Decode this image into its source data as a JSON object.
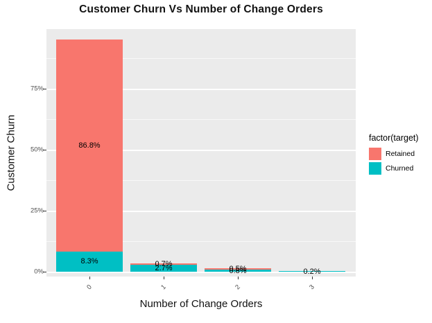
{
  "chart_data": {
    "type": "bar",
    "stacked": true,
    "title": "Customer Churn Vs Number of Change Orders",
    "xlabel": "Number of Change Orders",
    "ylabel": "Customer Churn",
    "categories": [
      "0",
      "1",
      "2",
      "3"
    ],
    "series": [
      {
        "name": "Retained",
        "color": "#F8766D",
        "values": [
          86.8,
          0.7,
          0.5,
          0.0
        ],
        "labels": [
          "86.8%",
          "0.7%",
          "0.5%",
          ""
        ]
      },
      {
        "name": "Churned",
        "color": "#00BFC4",
        "values": [
          8.3,
          2.7,
          0.8,
          0.2
        ],
        "labels": [
          "8.3%",
          "2.7%",
          "0.8%",
          "0.2%"
        ]
      }
    ],
    "stack_order_bottom_up": [
      "Churned",
      "Retained"
    ],
    "y_ticks": [
      {
        "value": 0,
        "label": "0%"
      },
      {
        "value": 25,
        "label": "25%"
      },
      {
        "value": 50,
        "label": "50%"
      },
      {
        "value": 75,
        "label": "75%"
      }
    ],
    "y_minor": [
      12.5,
      37.5,
      62.5,
      87.5
    ],
    "ylim": [
      0,
      100
    ],
    "legend_title": "factor(target)",
    "legend_position": "right",
    "grid": true,
    "colors": {
      "panel_bg": "#EBEBEB",
      "grid": "#FFFFFF",
      "tick_text": "#4D4D4D",
      "label_text": "#000000"
    }
  }
}
